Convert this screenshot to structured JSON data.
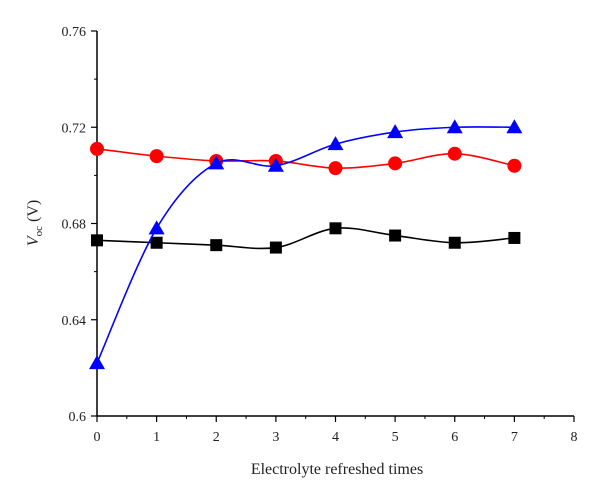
{
  "chart_data": {
    "type": "line",
    "xlabel": "Electrolyte refreshed times",
    "ylabel_var": "V",
    "ylabel_sub": "oc",
    "ylabel_unit": " (V)",
    "xlim": [
      0,
      8
    ],
    "ylim": [
      0.6,
      0.76
    ],
    "xticks": [
      0,
      1,
      2,
      3,
      4,
      5,
      6,
      7,
      8
    ],
    "xtick_labels": [
      "0",
      "1",
      "2",
      "3",
      "4",
      "5",
      "6",
      "7",
      "8"
    ],
    "yticks": [
      0.6,
      0.64,
      0.68,
      0.72,
      0.76
    ],
    "ytick_labels": [
      "0.6",
      "0.64",
      "0.68",
      "0.72",
      "0.76"
    ],
    "grid": false,
    "series": [
      {
        "marker": "square",
        "color": "#000000",
        "x": [
          0,
          1,
          2,
          3,
          4,
          5,
          6,
          7
        ],
        "values": [
          0.673,
          0.672,
          0.671,
          0.67,
          0.678,
          0.675,
          0.672,
          0.674
        ]
      },
      {
        "marker": "circle",
        "color": "#ff0000",
        "x": [
          0,
          1,
          2,
          3,
          4,
          5,
          6,
          7
        ],
        "values": [
          0.711,
          0.708,
          0.706,
          0.706,
          0.703,
          0.705,
          0.709,
          0.704
        ]
      },
      {
        "marker": "triangle",
        "color": "#0000ff",
        "x": [
          0,
          1,
          2,
          3,
          4,
          5,
          6,
          7
        ],
        "values": [
          0.622,
          0.678,
          0.705,
          0.704,
          0.713,
          0.718,
          0.72,
          0.72
        ]
      }
    ]
  }
}
